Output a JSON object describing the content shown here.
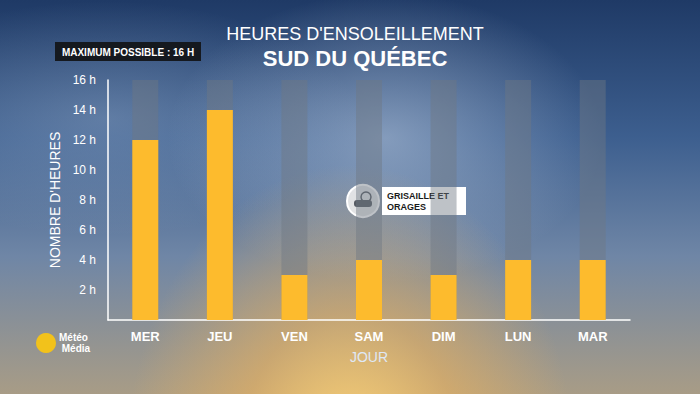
{
  "chart_data": {
    "type": "bar",
    "title": "HEURES D'ENSOLEILLEMENT",
    "subtitle": "SUD DU QUÉBEC",
    "badge": "MAXIMUM POSSIBLE : 16 H",
    "max_possible": 16,
    "annotation": "GRISAILLE ET ORAGES",
    "source": "Météo Média",
    "x_label": "JOUR",
    "y_label": "NOMBRE D'HEURES",
    "categories": [
      "MER",
      "JEU",
      "VEN",
      "SAM",
      "DIM",
      "LUN",
      "MAR"
    ],
    "values": [
      12,
      14,
      3,
      4,
      3,
      4,
      4
    ],
    "color": "#fdbb2d",
    "ylim": [
      0,
      16
    ],
    "yticks": [
      {
        "value": 2,
        "label": "2 h"
      },
      {
        "value": 4,
        "label": "4 h"
      },
      {
        "value": 6,
        "label": "6 h"
      },
      {
        "value": 8,
        "label": "8 h"
      },
      {
        "value": 10,
        "label": "10 h"
      },
      {
        "value": 12,
        "label": "12 h"
      },
      {
        "value": 14,
        "label": "14 h"
      },
      {
        "value": 16,
        "label": "16 h"
      }
    ],
    "grid": false
  }
}
